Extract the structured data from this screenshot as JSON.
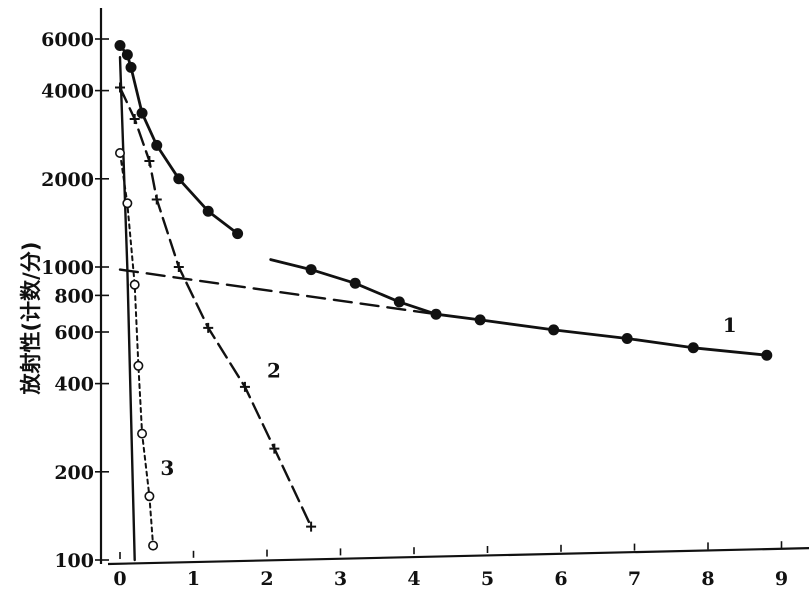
{
  "chart_data": {
    "type": "line",
    "title": "",
    "xlabel": "",
    "ylabel": "放射性(计数/分)",
    "x_ticks": [
      0,
      1,
      2,
      3,
      4,
      5,
      6,
      7,
      8,
      9
    ],
    "y_ticks": [
      100,
      200,
      400,
      600,
      800,
      1000,
      2000,
      4000,
      6000
    ],
    "y_scale": "log",
    "xlim": [
      0,
      9.2
    ],
    "ylim": [
      100,
      7800
    ],
    "grid": false,
    "series": [
      {
        "name": "1",
        "style": "solid-filled-circles",
        "points": [
          [
            0.0,
            5700
          ],
          [
            0.1,
            5300
          ],
          [
            0.15,
            4800
          ],
          [
            0.3,
            3350
          ],
          [
            0.5,
            2600
          ],
          [
            0.8,
            2000
          ],
          [
            1.2,
            1550
          ],
          [
            1.6,
            1300
          ],
          [
            2.6,
            980
          ],
          [
            3.2,
            880
          ],
          [
            3.8,
            760
          ],
          [
            4.3,
            690
          ],
          [
            4.9,
            660
          ],
          [
            5.9,
            610
          ],
          [
            6.9,
            570
          ],
          [
            7.8,
            530
          ],
          [
            8.8,
            500
          ]
        ]
      },
      {
        "name": "2",
        "style": "dashed-crosses",
        "points": [
          [
            0.0,
            4100
          ],
          [
            0.2,
            3200
          ],
          [
            0.4,
            2300
          ],
          [
            0.5,
            1700
          ],
          [
            0.8,
            1000
          ],
          [
            1.2,
            620
          ],
          [
            1.7,
            390
          ],
          [
            2.1,
            240
          ],
          [
            2.6,
            130
          ]
        ]
      },
      {
        "name": "3",
        "style": "dotted-open-circles",
        "points": [
          [
            0.0,
            2450
          ],
          [
            0.1,
            1650
          ],
          [
            0.2,
            870
          ],
          [
            0.25,
            460
          ],
          [
            0.3,
            270
          ],
          [
            0.4,
            165
          ],
          [
            0.45,
            112
          ]
        ]
      },
      {
        "name": "",
        "style": "solid-steep-line",
        "points": [
          [
            0.0,
            5200
          ],
          [
            0.1,
            1000
          ],
          [
            0.2,
            100
          ]
        ]
      },
      {
        "name": "",
        "style": "long-dash-extrapolation",
        "points": [
          [
            0.0,
            980
          ],
          [
            4.3,
            690
          ]
        ]
      }
    ]
  }
}
